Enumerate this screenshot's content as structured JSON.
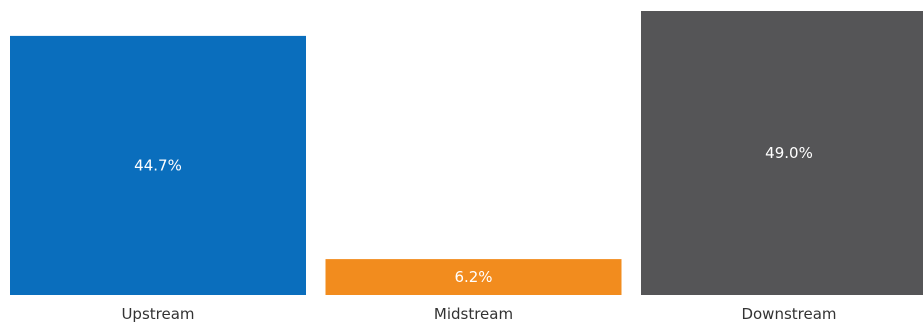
{
  "chart_data": {
    "type": "bar",
    "title": "",
    "xlabel": "",
    "ylabel": "",
    "categories": [
      "Upstream",
      "Midstream",
      "Downstream"
    ],
    "values": [
      44.7,
      6.2,
      49.0
    ],
    "value_labels": [
      "44.7%",
      "6.2%",
      "49.0%"
    ],
    "colors": [
      "#0A6EBD",
      "#F28C1E",
      "#555557"
    ],
    "ylim": [
      0,
      49.0
    ],
    "grid": false,
    "legend": "none"
  }
}
